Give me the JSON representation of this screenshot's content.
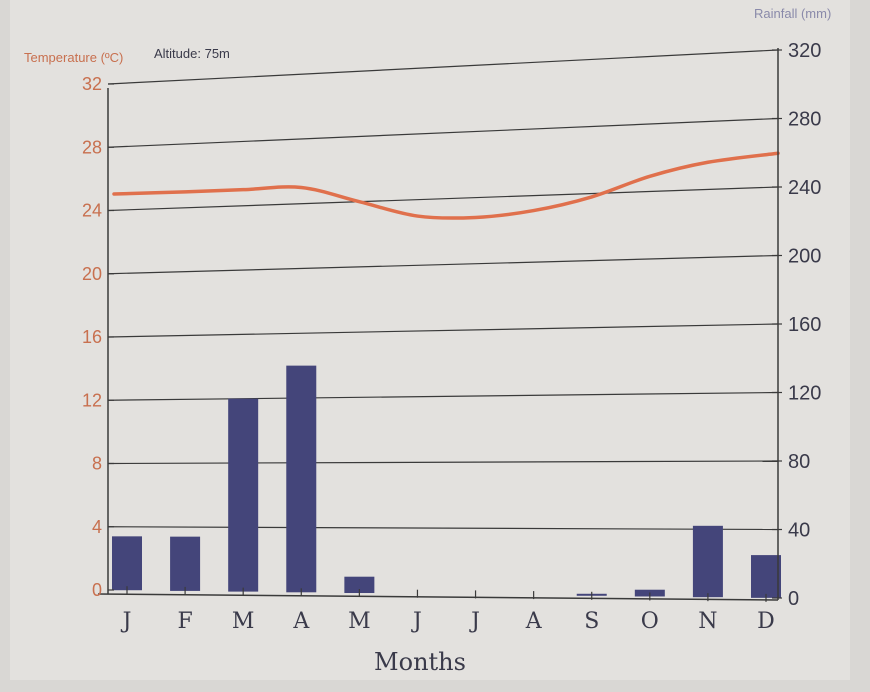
{
  "chart_data": {
    "type": "bar",
    "xlabel": "Months",
    "categories": [
      "J",
      "F",
      "M",
      "A",
      "M",
      "J",
      "J",
      "A",
      "S",
      "O",
      "N",
      "D"
    ],
    "left_axis": {
      "label": "Temperature (ºC)",
      "ylim": [
        0,
        32
      ],
      "ticks": [
        "0",
        "4",
        "8",
        "12",
        "16",
        "20",
        "24",
        "28",
        "32"
      ]
    },
    "right_axis": {
      "label": "Rainfall (mm)",
      "ylim": [
        0,
        320
      ],
      "ticks": [
        "0",
        "40",
        "80",
        "120",
        "160",
        "200",
        "240",
        "280",
        "320"
      ]
    },
    "annotation": "Altitude:  75m",
    "series": [
      {
        "type": "bar",
        "axis": "right",
        "values": [
          34,
          34,
          120,
          140,
          10,
          0,
          0,
          0,
          1,
          4,
          42,
          25
        ]
      },
      {
        "type": "line",
        "axis": "left",
        "values": [
          25,
          25,
          25,
          25,
          24,
          23,
          22.8,
          23.1,
          23.8,
          24.9,
          25.6,
          26
        ]
      }
    ],
    "grid": true,
    "colors": {
      "bars": "#44457a",
      "line": "#e0704c",
      "grid": "#3a3a3a",
      "left_text": "#c8704f"
    }
  }
}
